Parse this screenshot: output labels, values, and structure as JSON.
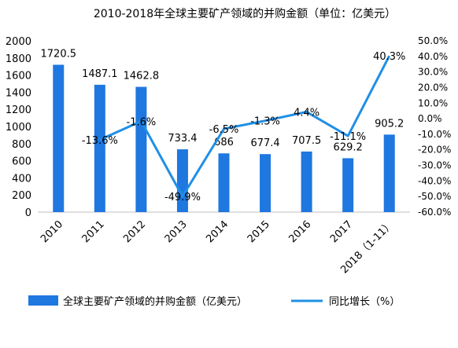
{
  "chart_data": {
    "type": "bar",
    "title": "2010-2018年全球主要矿产领域的并购金额（单位：亿美元）",
    "categories": [
      "2010",
      "2011",
      "2012",
      "2013",
      "2014",
      "2015",
      "2016",
      "2017",
      "2018（1-11）"
    ],
    "series": [
      {
        "name": "全球主要矿产领域的并购金额（亿美元）",
        "type": "bar",
        "axis": "left",
        "color": "#1f77e0",
        "values": [
          1720.5,
          1487.1,
          1462.8,
          733.4,
          686,
          677.4,
          707.5,
          629.2,
          905.2
        ],
        "labels": [
          "1720.5",
          "1487.1",
          "1462.8",
          "733.4",
          "686",
          "677.4",
          "707.5",
          "629.2",
          "905.2"
        ]
      },
      {
        "name": "同比增长（%）",
        "type": "line",
        "axis": "right",
        "color": "#1f8fe6",
        "values": [
          null,
          -13.6,
          -1.6,
          -49.9,
          -6.5,
          -1.3,
          4.4,
          -11.1,
          40.3
        ],
        "labels": [
          "",
          "-13.6%",
          "-1.6%",
          "-49.9%",
          "-6.5%",
          "-1.3%",
          "4.4%",
          "-11.1%",
          "40.3%"
        ]
      }
    ],
    "left_axis": {
      "min": 0,
      "max": 2000,
      "ticks": [
        "0",
        "200",
        "400",
        "600",
        "800",
        "1000",
        "1200",
        "1400",
        "1600",
        "1800",
        "2000"
      ]
    },
    "right_axis": {
      "min": -60,
      "max": 50,
      "ticks": [
        "-60.0%",
        "-50.0%",
        "-40.0%",
        "-30.0%",
        "-20.0%",
        "-10.0%",
        "0.0%",
        "10.0%",
        "20.0%",
        "30.0%",
        "40.0%",
        "50.0%"
      ]
    },
    "grid": false,
    "legend_position": "bottom"
  }
}
